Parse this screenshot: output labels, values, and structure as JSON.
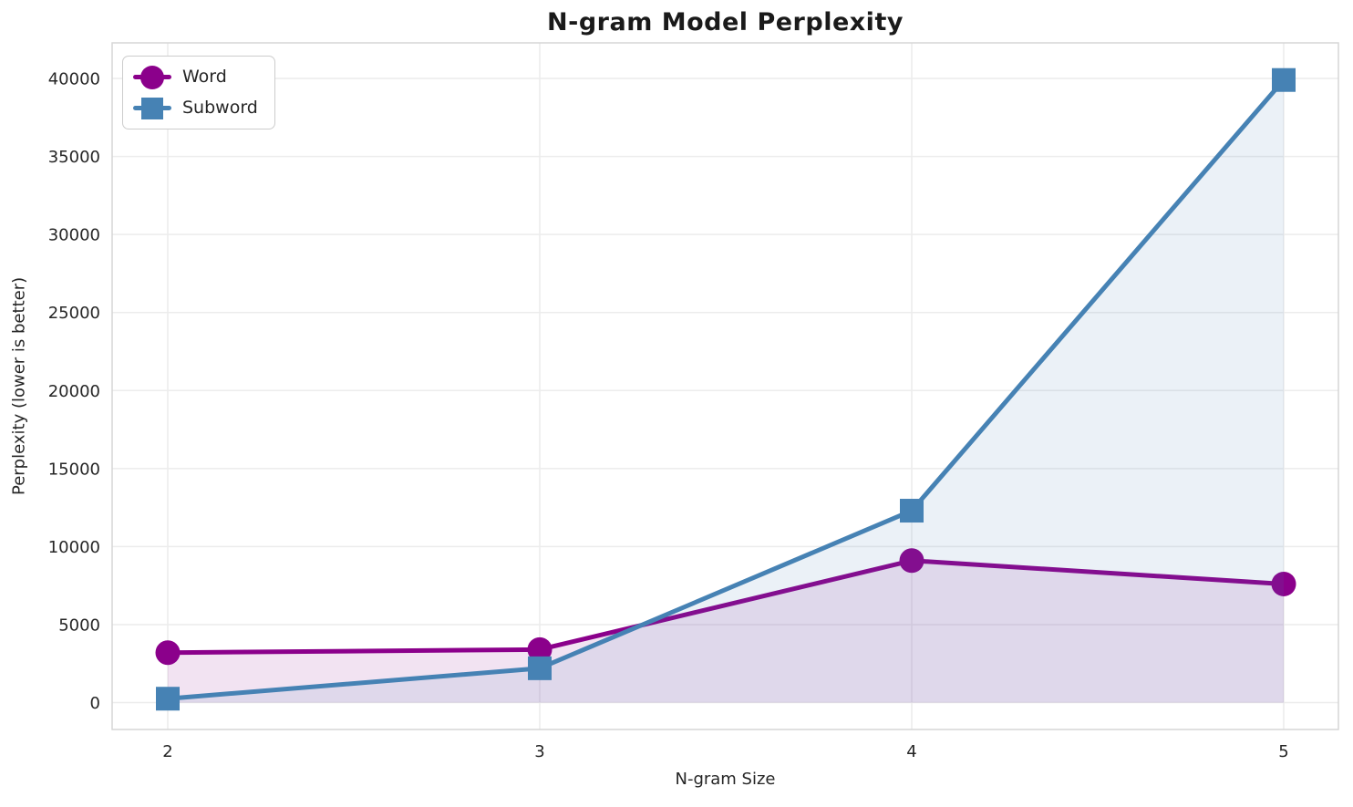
{
  "chart_data": {
    "type": "line",
    "title": "N-gram Model Perplexity",
    "xlabel": "N-gram Size",
    "ylabel": "Perplexity (lower is better)",
    "x": [
      2,
      3,
      4,
      5
    ],
    "x_tick_labels": [
      "2",
      "3",
      "4",
      "5"
    ],
    "y_ticks": [
      0,
      5000,
      10000,
      15000,
      20000,
      25000,
      30000,
      35000,
      40000
    ],
    "y_tick_labels": [
      "0",
      "5000",
      "10000",
      "15000",
      "20000",
      "25000",
      "30000",
      "35000",
      "40000"
    ],
    "xlim": [
      2,
      5
    ],
    "ylim": [
      0,
      40000
    ],
    "grid": true,
    "legend_position": "upper left",
    "fill_to_zero": true,
    "fill_alpha": 0.11,
    "series": [
      {
        "name": "Word",
        "values": [
          3200,
          3400,
          9100,
          7600
        ],
        "color": "#8B008B",
        "marker": "circle"
      },
      {
        "name": "Subword",
        "values": [
          250,
          2200,
          12300,
          39900
        ],
        "color": "#4682B4",
        "marker": "square"
      }
    ],
    "grid_color": "#ececec",
    "spine_color": "#d5d5d5"
  }
}
